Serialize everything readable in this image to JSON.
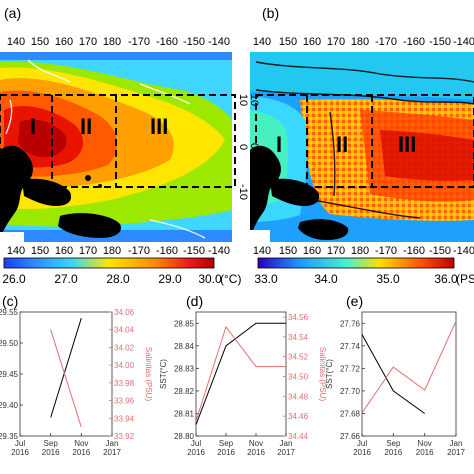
{
  "panels": {
    "a": {
      "label": "(a)",
      "lon_ticks": [
        "140",
        "150",
        "160",
        "170",
        "180",
        "-170",
        "-160",
        "-150",
        "-140"
      ],
      "lat_ticks": [
        "10",
        "0",
        "-10"
      ],
      "regions": [
        "I",
        "II",
        "III"
      ],
      "colorbar": {
        "ticks": [
          "26.0",
          "27.0",
          "28.0",
          "29.0",
          "30.0"
        ],
        "unit": "(°C)"
      }
    },
    "b": {
      "label": "(b)",
      "lon_ticks": [
        "140",
        "150",
        "160",
        "170",
        "180",
        "-170",
        "-160",
        "-150",
        "-140"
      ],
      "lat_ticks": [
        "10",
        "0",
        "-10"
      ],
      "regions": [
        "I",
        "II",
        "III"
      ],
      "colorbar": {
        "ticks": [
          "33.0",
          "34.0",
          "35.0",
          "36.0"
        ],
        "unit": "(PS"
      }
    }
  },
  "chart_data": [
    {
      "panel": "(c)",
      "type": "line",
      "x": [
        "Jul 2016",
        "Sep 2016",
        "Nov 2016",
        "Jan 2017"
      ],
      "series": [
        {
          "axis": "left",
          "color": "#000000",
          "values": [
            null,
            29.38,
            29.54,
            null
          ]
        },
        {
          "axis": "right",
          "color": "#e07070",
          "values": [
            null,
            34.04,
            33.93,
            null
          ]
        }
      ],
      "ylabel_left": "",
      "ylabel_right": "Salinitas (PSU)",
      "yticks_left": [
        "29.35",
        "29.40",
        "29.45",
        "29.50",
        "29.55"
      ],
      "yticks_right": [
        "33.92",
        "33.94",
        "33.96",
        "33.98",
        "34.00",
        "34.02",
        "34.04",
        "34.06"
      ],
      "ylim_left": [
        29.35,
        29.55
      ],
      "ylim_right": [
        33.92,
        34.06
      ],
      "xticks": [
        [
          "Jul",
          "2016"
        ],
        [
          "Sep",
          "2016"
        ],
        [
          "Nov",
          "2016"
        ],
        [
          "Jan",
          "2017"
        ]
      ]
    },
    {
      "panel": "(d)",
      "type": "line",
      "x": [
        "Jul 2016",
        "Sep 2016",
        "Nov 2016",
        "Jan 2017"
      ],
      "series": [
        {
          "axis": "left",
          "color": "#000000",
          "values": [
            28.805,
            28.84,
            28.85,
            28.85
          ]
        },
        {
          "axis": "right",
          "color": "#e07070",
          "values": [
            34.455,
            34.55,
            34.51,
            34.51
          ]
        }
      ],
      "ylabel_left": "SST(°C)",
      "ylabel_right": "Salinitas (PSU)",
      "yticks_left": [
        "28.80",
        "28.81",
        "28.82",
        "28.83",
        "28.84",
        "28.85"
      ],
      "yticks_right": [
        "34.44",
        "34.46",
        "34.48",
        "34.50",
        "34.52",
        "34.54",
        "34.56"
      ],
      "ylim_left": [
        28.8,
        28.855
      ],
      "ylim_right": [
        34.44,
        34.565
      ],
      "xticks": [
        [
          "Jul",
          "2016"
        ],
        [
          "Sep",
          "2016"
        ],
        [
          "Nov",
          "2016"
        ],
        [
          "Jan",
          "2017"
        ]
      ]
    },
    {
      "panel": "(e)",
      "type": "line",
      "x": [
        "Jul 2016",
        "Sep 2016",
        "Nov 2016",
        "Jan 2017"
      ],
      "series": [
        {
          "axis": "left",
          "color": "#000000",
          "values": [
            27.75,
            27.7,
            27.68,
            null
          ]
        },
        {
          "axis": "right",
          "color": "#e07070",
          "values": [
            33.9,
            34.0,
            33.95,
            34.1
          ]
        }
      ],
      "ylabel_left": "SST(°C)",
      "ylabel_right": "",
      "yticks_left": [
        "27.66",
        "27.68",
        "27.70",
        "27.72",
        "27.74",
        "27.76"
      ],
      "yticks_right": [],
      "ylim_left": [
        27.66,
        27.77
      ],
      "ylim_right": [
        33.85,
        34.12
      ],
      "xticks": [
        [
          "Jul",
          "2016"
        ],
        [
          "Sep",
          "2016"
        ],
        [
          "Nov",
          "2016"
        ],
        [
          "Jan",
          "2017"
        ]
      ]
    }
  ]
}
